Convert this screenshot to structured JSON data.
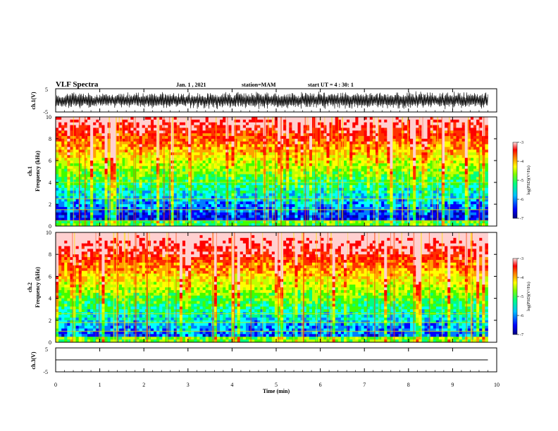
{
  "header": {
    "title": "VLF Spectra",
    "date": "Jan. 1 , 2021",
    "station": "station=MAM",
    "start_ut": "start UT =   4 : 30: 1"
  },
  "chart_data": [
    {
      "id": "ch1-waveform",
      "type": "line",
      "ylabel": "ch.1(V)",
      "ylim": [
        -5,
        5
      ],
      "yticks": [
        "5",
        "-5"
      ],
      "xlim": [
        0,
        10
      ],
      "description": "dense broadband waveform spanning about -4 to +4 V across the whole record, ending near 9.8 min"
    },
    {
      "id": "ch1-spectrogram",
      "type": "heatmap",
      "ylabel_channel": "ch.1",
      "ylabel": "Frequency (kHz)",
      "ylim": [
        0,
        10
      ],
      "yticks": [
        "0",
        "2",
        "4",
        "6",
        "8",
        "10"
      ],
      "xlim": [
        0,
        9.8
      ],
      "colorbar": {
        "label": "log(PSD)(V²/Hz)",
        "range": [
          -7,
          -3
        ],
        "ticks": [
          "-3",
          "-4",
          "-5",
          "-6",
          "-7"
        ]
      },
      "description": "blue/dark-blue power below ~4 kHz rising to green/yellow/red above 6 kHz, with many vertical broadband bursts and horizontal narrowband lines near 0.5, 1.5 and 4 kHz"
    },
    {
      "id": "ch2-spectrogram",
      "type": "heatmap",
      "ylabel_channel": "ch.2",
      "ylabel": "Frequency (kHz)",
      "ylim": [
        0,
        10
      ],
      "yticks": [
        "0",
        "2",
        "4",
        "6",
        "8",
        "10"
      ],
      "xlim": [
        0,
        9.8
      ],
      "colorbar": {
        "label": "log(PSD)(V²/Hz)",
        "range": [
          -7,
          -3
        ],
        "ticks": [
          "-3",
          "-4",
          "-5",
          "-6",
          "-7"
        ]
      },
      "description": "blue below ~3 kHz, green 4-6 kHz, red dominating above ~7 kHz, with vertical bursts throughout"
    },
    {
      "id": "ch3-waveform",
      "type": "line",
      "ylabel": "ch.3(V)",
      "ylim": [
        -5,
        5
      ],
      "yticks": [
        "5",
        "-5"
      ],
      "xlim": [
        0,
        10
      ],
      "x": [
        0,
        9.8
      ],
      "values": [
        0,
        0
      ],
      "description": "flat trace at 0 V"
    }
  ],
  "x_axis": {
    "label": "Time (min)",
    "range": [
      0,
      10
    ],
    "ticks": [
      "0",
      "1",
      "2",
      "3",
      "4",
      "5",
      "6",
      "7",
      "8",
      "9",
      "10"
    ]
  },
  "colors": {
    "colormap": [
      "#0000aa",
      "#0000ff",
      "#0080ff",
      "#00ffff",
      "#00ff80",
      "#40ff00",
      "#c0ff00",
      "#ffff00",
      "#ffa000",
      "#ff3000",
      "#ff0000",
      "#ffd0d0"
    ]
  }
}
